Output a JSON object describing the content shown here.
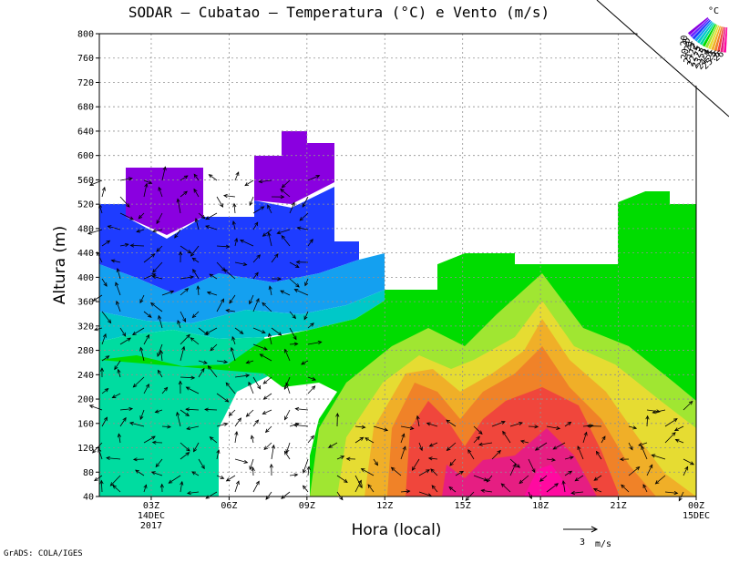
{
  "chart_data": {
    "type": "heatmap",
    "title": "SODAR  –  Cubatao  –  Temperatura (°C) e Vento (m/s)",
    "xlabel": "Hora (local)",
    "ylabel": "Altura (m)",
    "ylim": [
      40,
      800
    ],
    "yticks": [
      40,
      80,
      120,
      160,
      200,
      240,
      280,
      320,
      360,
      400,
      440,
      480,
      520,
      560,
      600,
      640,
      680,
      720,
      760,
      800
    ],
    "xlim": [
      0,
      23
    ],
    "xticks": [
      {
        "hour": 2,
        "label": "03Z",
        "sub1": "14DEC",
        "sub2": "2017"
      },
      {
        "hour": 5,
        "label": "06Z",
        "sub1": "",
        "sub2": ""
      },
      {
        "hour": 8,
        "label": "09Z",
        "sub1": "",
        "sub2": ""
      },
      {
        "hour": 11,
        "label": "12Z",
        "sub1": "",
        "sub2": ""
      },
      {
        "hour": 14,
        "label": "15Z",
        "sub1": "",
        "sub2": ""
      },
      {
        "hour": 17,
        "label": "18Z",
        "sub1": "",
        "sub2": ""
      },
      {
        "hour": 20,
        "label": "21Z",
        "sub1": "",
        "sub2": ""
      },
      {
        "hour": 23,
        "label": "00Z",
        "sub1": "15DEC",
        "sub2": ""
      }
    ],
    "grid": true,
    "legend": {
      "position": "top-right",
      "unit": "°C",
      "levels": [
        "20",
        "20.5",
        "21",
        "21.5",
        "22",
        "22.5",
        "23",
        "23.5",
        "24",
        "24.5",
        "25",
        "25.5",
        "26"
      ]
    },
    "wind_scale": {
      "value": "3",
      "unit": "m/s"
    }
  },
  "footer": "GrADS: COLA/IGES"
}
